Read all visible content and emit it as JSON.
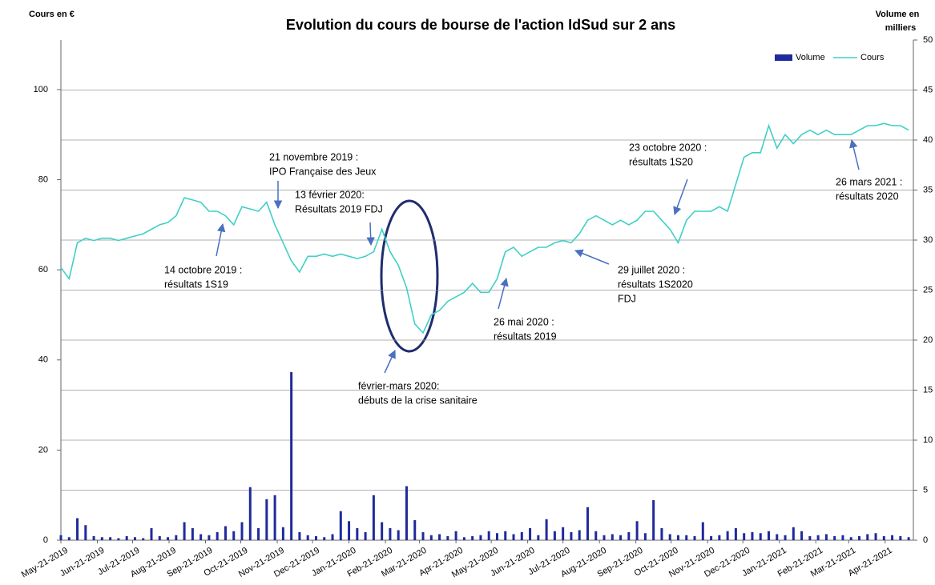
{
  "chart_data": {
    "type": "bar-line",
    "title": "Evolution du cours de bourse de l'action IdSud sur 2 ans",
    "ylabel": "Cours en €",
    "y2label": [
      "Volume en",
      "milliers"
    ],
    "x": [
      "2019-05-21",
      "2019-05-28",
      "2019-06-04",
      "2019-06-11",
      "2019-06-18",
      "2019-06-25",
      "2019-07-02",
      "2019-07-09",
      "2019-07-16",
      "2019-07-23",
      "2019-07-30",
      "2019-08-06",
      "2019-08-13",
      "2019-08-20",
      "2019-08-27",
      "2019-09-03",
      "2019-09-10",
      "2019-09-17",
      "2019-09-24",
      "2019-10-01",
      "2019-10-08",
      "2019-10-15",
      "2019-10-22",
      "2019-10-29",
      "2019-11-05",
      "2019-11-12",
      "2019-11-19",
      "2019-11-26",
      "2019-12-03",
      "2019-12-10",
      "2019-12-17",
      "2019-12-24",
      "2019-12-31",
      "2020-01-07",
      "2020-01-14",
      "2020-01-21",
      "2020-01-28",
      "2020-02-04",
      "2020-02-11",
      "2020-02-18",
      "2020-02-25",
      "2020-03-03",
      "2020-03-10",
      "2020-03-17",
      "2020-03-24",
      "2020-03-31",
      "2020-04-07",
      "2020-04-14",
      "2020-04-21",
      "2020-04-28",
      "2020-05-05",
      "2020-05-12",
      "2020-05-19",
      "2020-05-26",
      "2020-06-02",
      "2020-06-09",
      "2020-06-16",
      "2020-06-23",
      "2020-06-30",
      "2020-07-07",
      "2020-07-14",
      "2020-07-21",
      "2020-07-28",
      "2020-08-04",
      "2020-08-11",
      "2020-08-18",
      "2020-08-25",
      "2020-09-01",
      "2020-09-08",
      "2020-09-15",
      "2020-09-22",
      "2020-09-29",
      "2020-10-06",
      "2020-10-13",
      "2020-10-20",
      "2020-10-27",
      "2020-11-03",
      "2020-11-10",
      "2020-11-17",
      "2020-11-24",
      "2020-12-01",
      "2020-12-08",
      "2020-12-15",
      "2020-12-22",
      "2020-12-29",
      "2021-01-05",
      "2021-01-12",
      "2021-01-19",
      "2021-01-26",
      "2021-02-02",
      "2021-02-09",
      "2021-02-16",
      "2021-02-23",
      "2021-03-02",
      "2021-03-09",
      "2021-03-16",
      "2021-03-23",
      "2021-03-30",
      "2021-04-06",
      "2021-04-13",
      "2021-04-20",
      "2021-04-27",
      "2021-05-04",
      "2021-05-11"
    ],
    "series": [
      {
        "name": "Volume",
        "color": "#1f2a9c",
        "axis": "y2",
        "kind": "bar",
        "values": [
          0.5,
          0.3,
          2.2,
          1.5,
          0.4,
          0.3,
          0.3,
          0.2,
          0.4,
          0.3,
          0.2,
          1.2,
          0.4,
          0.3,
          0.5,
          1.8,
          1.2,
          0.6,
          0.5,
          0.8,
          1.4,
          0.9,
          1.8,
          5.3,
          1.2,
          4.1,
          4.5,
          1.3,
          16.8,
          0.8,
          0.5,
          0.4,
          0.3,
          0.6,
          2.9,
          1.9,
          1.2,
          0.8,
          4.5,
          1.8,
          1.2,
          1.0,
          5.4,
          2.0,
          0.8,
          0.5,
          0.6,
          0.4,
          0.9,
          0.3,
          0.4,
          0.5,
          0.9,
          0.7,
          0.9,
          0.6,
          0.8,
          1.2,
          0.5,
          2.1,
          0.9,
          1.3,
          0.8,
          1.0,
          3.3,
          0.9,
          0.5,
          0.6,
          0.5,
          0.8,
          1.9,
          0.7,
          4.0,
          1.2,
          0.6,
          0.5,
          0.5,
          0.4,
          1.8,
          0.4,
          0.5,
          0.9,
          1.2,
          0.7,
          0.8,
          0.7,
          0.9,
          0.6,
          0.5,
          1.3,
          0.9,
          0.4,
          0.5,
          0.6,
          0.4,
          0.5,
          0.3,
          0.4,
          0.6,
          0.7,
          0.4,
          0.5,
          0.4,
          0.3
        ]
      },
      {
        "name": "Cours",
        "color": "#3fd0c6",
        "kind": "line",
        "values": [
          60.5,
          58,
          66,
          67,
          66.5,
          67,
          67,
          66.5,
          67,
          67.5,
          68,
          69,
          70,
          70.5,
          72,
          76,
          75.5,
          75,
          73,
          73,
          72,
          70,
          74,
          73.5,
          73,
          75,
          70,
          66,
          62,
          59.5,
          63,
          63,
          63.5,
          63,
          63.5,
          63,
          62.5,
          63,
          64,
          69,
          64,
          61,
          56,
          48,
          46,
          50,
          51,
          53,
          54,
          55,
          57,
          55,
          55,
          58,
          64,
          65,
          63,
          64,
          65,
          65,
          66,
          66.5,
          66,
          68,
          71,
          72,
          71,
          70,
          71,
          70,
          71,
          73,
          73,
          71,
          69,
          66,
          71,
          73,
          73,
          73,
          74,
          73,
          79,
          85,
          86,
          86,
          92,
          87,
          90,
          88,
          90,
          91,
          90,
          91,
          90,
          90,
          90,
          91,
          92,
          92,
          92.5,
          92,
          92,
          91
        ]
      }
    ],
    "xlim": [
      "2019-05-21",
      "2021-05-15"
    ],
    "xticks": [
      {
        "value": "2019-05-21",
        "label": "May-21-2019"
      },
      {
        "value": "2019-06-21",
        "label": "Jun-21-2019"
      },
      {
        "value": "2019-07-21",
        "label": "Jul-21-2019"
      },
      {
        "value": "2019-08-21",
        "label": "Aug-21-2019"
      },
      {
        "value": "2019-09-21",
        "label": "Sep-21-2019"
      },
      {
        "value": "2019-10-21",
        "label": "Oct-21-2019"
      },
      {
        "value": "2019-11-21",
        "label": "Nov-21-2019"
      },
      {
        "value": "2019-12-21",
        "label": "Dec-21-2019"
      },
      {
        "value": "2020-01-21",
        "label": "Jan-21-2020"
      },
      {
        "value": "2020-02-21",
        "label": "Feb-21-2020"
      },
      {
        "value": "2020-03-21",
        "label": "Mar-21-2020"
      },
      {
        "value": "2020-04-21",
        "label": "Apr-21-2020"
      },
      {
        "value": "2020-05-21",
        "label": "May-21-2020"
      },
      {
        "value": "2020-06-21",
        "label": "Jun-21-2020"
      },
      {
        "value": "2020-07-21",
        "label": "Jul-21-2020"
      },
      {
        "value": "2020-08-21",
        "label": "Aug-21-2020"
      },
      {
        "value": "2020-09-21",
        "label": "Sep-21-2020"
      },
      {
        "value": "2020-10-21",
        "label": "Oct-21-2020"
      },
      {
        "value": "2020-11-21",
        "label": "Nov-21-2020"
      },
      {
        "value": "2020-12-21",
        "label": "Dec-21-2020"
      },
      {
        "value": "2021-01-21",
        "label": "Jan-21-2021"
      },
      {
        "value": "2021-02-21",
        "label": "Feb-21-2021"
      },
      {
        "value": "2021-03-21",
        "label": "Mar-21-2021"
      },
      {
        "value": "2021-04-21",
        "label": "Apr-21-2021"
      }
    ],
    "ylim": [
      0,
      111
    ],
    "yticks": [
      0,
      20,
      40,
      60,
      80,
      100
    ],
    "y2lim": [
      0,
      50
    ],
    "y2ticks": [
      0,
      5,
      10,
      15,
      20,
      25,
      30,
      35,
      40,
      45,
      50
    ],
    "grid": "y2",
    "legend": "top right",
    "annotations": [
      {
        "text": [
          "14 octobre 2019 :",
          "résultats 1S19"
        ]
      },
      {
        "text": [
          "21 novembre 2019 :",
          "IPO Française des Jeux"
        ]
      },
      {
        "text": [
          "13 février 2020:",
          "Résultats 2019 FDJ"
        ]
      },
      {
        "text": [
          "février-mars 2020:",
          "débuts de la crise sanitaire"
        ]
      },
      {
        "text": [
          "26 mai 2020 :",
          "résultats 2019"
        ]
      },
      {
        "text": [
          "29 juillet 2020 :",
          "résultats 1S2020",
          "FDJ"
        ]
      },
      {
        "text": [
          "23 octobre 2020 :",
          "résultats 1S20"
        ]
      },
      {
        "text": [
          "26 mars 2021 :",
          "résultats 2020"
        ]
      }
    ]
  }
}
